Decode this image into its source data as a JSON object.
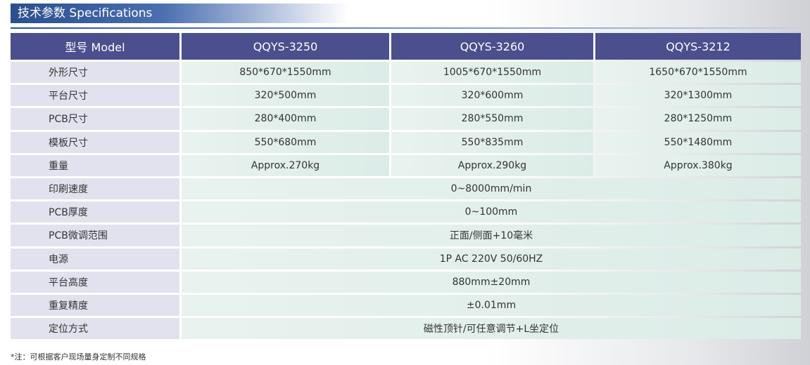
{
  "header": {
    "title": "技术参数 Specifications"
  },
  "table": {
    "header": [
      "型号 Model",
      "QQYS-3250",
      "QQYS-3260",
      "QQYS-3212"
    ],
    "rows": [
      [
        "外形尺寸",
        "850*670*1550mm",
        "1005*670*1550mm",
        "1650*670*1550mm"
      ],
      [
        "平台尺寸",
        "320*500mm",
        "320*600mm",
        "320*1300mm"
      ],
      [
        "PCB尺寸",
        "280*400mm",
        "280*550mm",
        "280*1250mm"
      ],
      [
        "模板尺寸",
        "550*680mm",
        "550*835mm",
        "550*1480mm"
      ],
      [
        "重量",
        "Approx.270kg",
        "Approx.290kg",
        "Approx.380kg"
      ],
      [
        "印刷速度",
        "0~8000mm/min"
      ],
      [
        "PCB厚度",
        "0~100mm"
      ],
      [
        "PCB微调范围",
        "正面/侧面+10毫米"
      ],
      [
        "电源",
        "1P AC 220V 50/60HZ"
      ],
      [
        "平台高度",
        "880mm±20mm"
      ],
      [
        "重复精度",
        "±0.01mm"
      ],
      [
        "定位方式",
        "磁性顶针/可任意调节+L坐定位"
      ]
    ]
  },
  "footnote": "*注：可根据客户现场量身定制不同规格"
}
